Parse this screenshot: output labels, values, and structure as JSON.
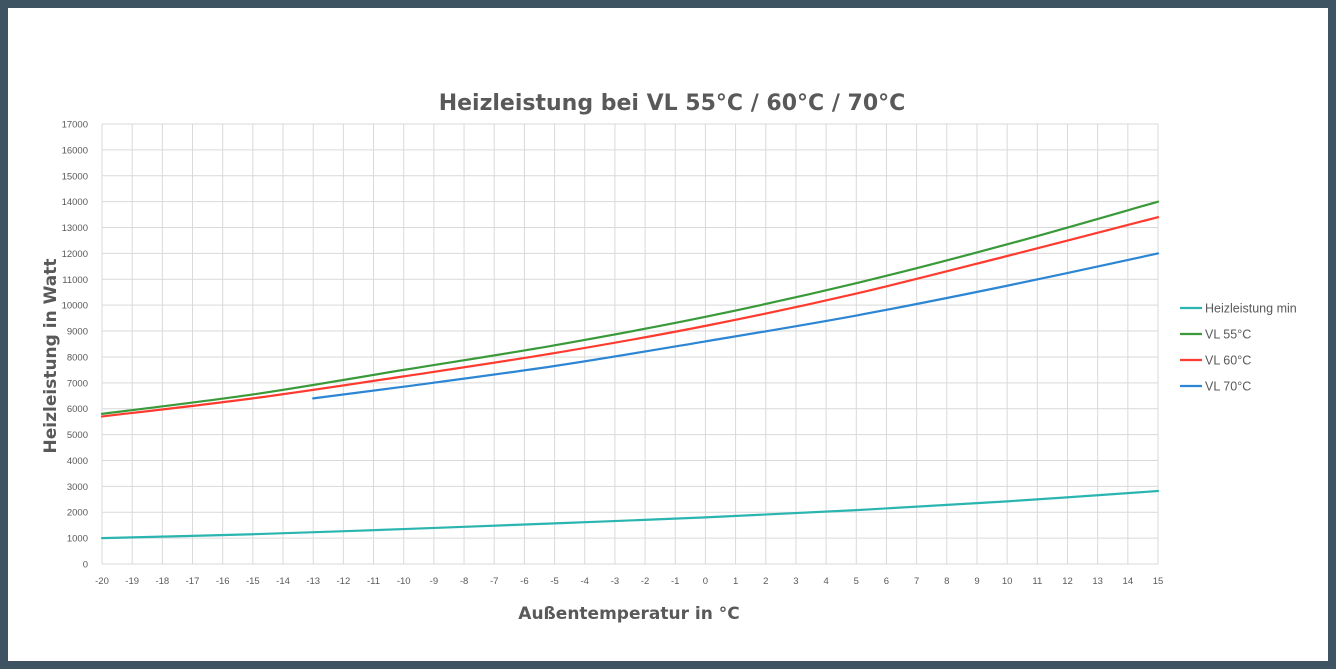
{
  "chart_data": {
    "type": "line",
    "title": "Heizleistung bei VL 55°C / 60°C / 70°C",
    "xlabel": "Außentemperatur in °C",
    "ylabel": "Heizleistung in Watt",
    "xlim": [
      -20,
      15
    ],
    "ylim": [
      0,
      17000
    ],
    "x_ticks": [
      -20,
      -19,
      -18,
      -17,
      -16,
      -15,
      -14,
      -13,
      -12,
      -11,
      -10,
      -9,
      -8,
      -7,
      -6,
      -5,
      -4,
      -3,
      -2,
      -1,
      0,
      1,
      2,
      3,
      4,
      5,
      6,
      7,
      8,
      9,
      10,
      11,
      12,
      13,
      14,
      15
    ],
    "y_ticks": [
      0,
      1000,
      2000,
      3000,
      4000,
      5000,
      6000,
      7000,
      8000,
      9000,
      10000,
      11000,
      12000,
      13000,
      14000,
      15000,
      16000,
      17000
    ],
    "grid": true,
    "legend_position": "right",
    "series": [
      {
        "name": "Heizleistung min",
        "color": "#2ab5b0",
        "x": [
          -20,
          -15,
          -10,
          -5,
          0,
          5,
          10,
          15
        ],
        "y": [
          1000,
          1150,
          1350,
          1570,
          1800,
          2080,
          2420,
          2820
        ]
      },
      {
        "name": "VL 55°C",
        "color": "#3a9a3a",
        "x": [
          -20,
          -15,
          -10,
          -5,
          0,
          5,
          10,
          15
        ],
        "y": [
          5800,
          6550,
          7500,
          8450,
          9550,
          10850,
          12350,
          14000
        ]
      },
      {
        "name": "VL 60°C",
        "color": "#ff3b2f",
        "x": [
          -20,
          -15,
          -10,
          -5,
          0,
          5,
          10,
          15
        ],
        "y": [
          5700,
          6400,
          7250,
          8150,
          9200,
          10450,
          11900,
          13400
        ]
      },
      {
        "name": "VL 70°C",
        "color": "#2c86d4",
        "x": [
          -13,
          -10,
          -5,
          0,
          5,
          10,
          15
        ],
        "y": [
          6400,
          6850,
          7650,
          8600,
          9600,
          10750,
          12000
        ]
      }
    ]
  }
}
